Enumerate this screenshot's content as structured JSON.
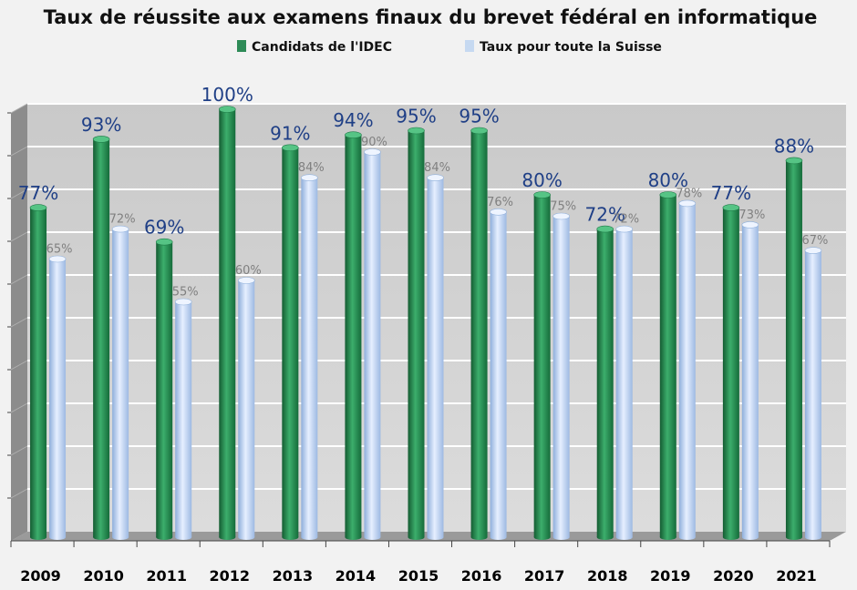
{
  "chart_data": {
    "type": "bar",
    "title": "Taux de réussite aux examens finaux du brevet fédéral en informatique",
    "categories": [
      "2009",
      "2010",
      "2011",
      "2012",
      "2013",
      "2014",
      "2015",
      "2016",
      "2017",
      "2018",
      "2019",
      "2020",
      "2021"
    ],
    "series": [
      {
        "name": "Candidats de l'IDEC",
        "color": "#2e8b57",
        "values": [
          77,
          93,
          69,
          100,
          91,
          94,
          95,
          95,
          80,
          72,
          80,
          77,
          88
        ],
        "labels": [
          "77%",
          "93%",
          "69%",
          "100%",
          "91%",
          "94%",
          "95%",
          "95%",
          "80%",
          "72%",
          "80%",
          "77%",
          "88%"
        ]
      },
      {
        "name": "Taux pour toute la Suisse",
        "color": "#c6d9f1",
        "values": [
          65,
          72,
          55,
          60,
          84,
          90,
          84,
          76,
          75,
          72,
          78,
          73,
          67
        ],
        "labels": [
          "65%",
          "72%",
          "55%",
          "60%",
          "84%",
          "90%",
          "84%",
          "76%",
          "75%",
          "72%",
          "78%",
          "73%",
          "67%"
        ]
      }
    ],
    "ylim": [
      0,
      100
    ],
    "grid": true,
    "legend": "top-center",
    "xlabel": "",
    "ylabel": ""
  }
}
